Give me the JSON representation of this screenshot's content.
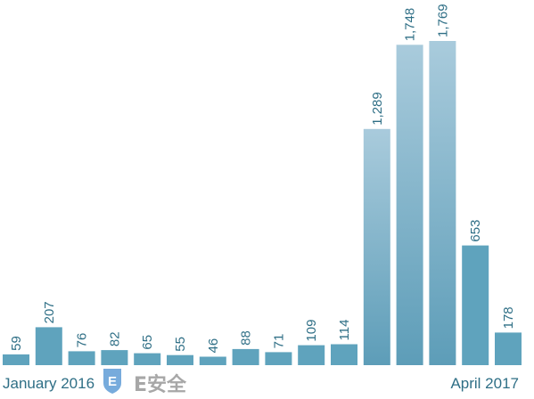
{
  "chart_data": {
    "type": "bar",
    "title": "",
    "xlabel": "",
    "ylabel": "",
    "values": [
      59,
      207,
      76,
      82,
      65,
      55,
      46,
      88,
      71,
      109,
      114,
      1289,
      1748,
      1769,
      653,
      178
    ],
    "value_labels": [
      "59",
      "207",
      "76",
      "82",
      "65",
      "55",
      "46",
      "88",
      "71",
      "109",
      "114",
      "1,289",
      "1,748",
      "1,769",
      "653",
      "178"
    ],
    "x_start_label": "January 2016",
    "x_end_label": "April 2017",
    "ylim": [
      0,
      1769
    ],
    "grid": false,
    "colors": {
      "low_bar": "#5fa3bd",
      "high_bar_top": "#a9cbdc",
      "high_bar_bottom": "#5d9db8",
      "label": "#2f6f86"
    }
  },
  "watermark": {
    "text": "E安全",
    "icon": "e-shield-logo-icon",
    "color": "#4a8fd1"
  }
}
